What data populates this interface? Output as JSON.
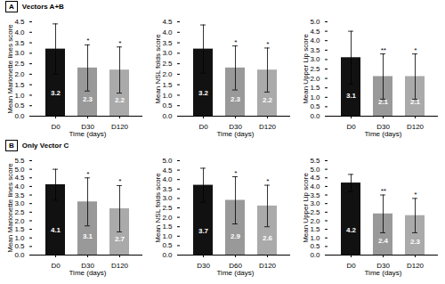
{
  "chart_data": [
    {
      "type": "bar",
      "title": "Vectors A+B",
      "subtitle": "A",
      "ylabel": "Mean Marionette lines score",
      "xlabel": "Time (days)",
      "categories": [
        "D0",
        "D30",
        "D120"
      ],
      "values": [
        3.2,
        2.3,
        2.2
      ],
      "errors": [
        1.2,
        1.1,
        1.1
      ],
      "colors": [
        "#111111",
        "#999999",
        "#aaaaaa"
      ],
      "annotations": [
        null,
        "*",
        "*"
      ],
      "data_labels": true,
      "ylim": [
        0.0,
        4.5
      ],
      "yticks": [
        {
          "value": 0,
          "label": "0.0"
        },
        0.5,
        {
          "value": 1,
          "label": "1.0"
        },
        1.5,
        {
          "value": 2,
          "label": "2.0"
        },
        2.5,
        {
          "value": 3,
          "label": "3.0"
        },
        3.5,
        {
          "value": 4,
          "label": "4.0"
        },
        4.5
      ]
    },
    {
      "type": "bar",
      "ylabel": "Mean NSL folds score",
      "xlabel": "Time (days)",
      "categories": [
        "D0",
        "D30",
        "D120"
      ],
      "values": [
        3.2,
        2.3,
        2.2
      ],
      "errors": [
        1.15,
        1.05,
        1.05
      ],
      "colors": [
        "#111111",
        "#999999",
        "#aaaaaa"
      ],
      "annotations": [
        null,
        "*",
        "*"
      ],
      "data_labels": true,
      "ylim": [
        0.0,
        4.5
      ],
      "yticks": [
        {
          "value": 0,
          "label": "0.0"
        },
        0.5,
        {
          "value": 1,
          "label": "1.0"
        },
        1.5,
        {
          "value": 2,
          "label": "2.0"
        },
        2.5,
        {
          "value": 3,
          "label": "3.0"
        },
        3.5,
        {
          "value": 4,
          "label": "4.0"
        },
        4.5
      ]
    },
    {
      "type": "bar",
      "ylabel": "Mean Upper Lip score",
      "xlabel": "Time (days)",
      "categories": [
        "D0",
        "D30",
        "D120"
      ],
      "values": [
        3.1,
        2.1,
        2.1
      ],
      "errors": [
        1.4,
        1.2,
        1.2
      ],
      "colors": [
        "#111111",
        "#999999",
        "#aaaaaa"
      ],
      "annotations": [
        null,
        "**",
        "*"
      ],
      "data_labels": true,
      "ylim": [
        0.0,
        5.0
      ],
      "yticks": [
        {
          "value": 0,
          "label": "0.0"
        },
        0.5,
        {
          "value": 1,
          "label": "1.0"
        },
        1.5,
        {
          "value": 2,
          "label": "2.0"
        },
        2.5,
        {
          "value": 3,
          "label": "3.0"
        },
        3.5,
        {
          "value": 4,
          "label": "4.0"
        },
        4.5,
        {
          "value": 5,
          "label": "5.0"
        }
      ]
    },
    {
      "type": "bar",
      "title": "Only Vector C",
      "subtitle": "B",
      "ylabel": "Mean Marionette lines score",
      "xlabel": "Time (days)",
      "categories": [
        "D0",
        "D30",
        "D120"
      ],
      "values": [
        4.1,
        3.1,
        2.7
      ],
      "errors": [
        0.9,
        1.4,
        1.35
      ],
      "colors": [
        "#111111",
        "#999999",
        "#aaaaaa"
      ],
      "annotations": [
        null,
        "*",
        "*"
      ],
      "data_labels": true,
      "ylim": [
        0.0,
        5.5
      ],
      "yticks": [
        {
          "value": 0,
          "label": "0.0"
        },
        0.5,
        {
          "value": 1,
          "label": "1.0"
        },
        1.5,
        {
          "value": 2,
          "label": "2.0"
        },
        2.5,
        {
          "value": 3,
          "label": "3.0"
        },
        3.5,
        {
          "value": 4,
          "label": "4.0"
        },
        4.5,
        {
          "value": 5,
          "label": "5.0"
        },
        5.5
      ]
    },
    {
      "type": "bar",
      "ylabel": "Mean NSL folds score",
      "xlabel": "Time (days)",
      "categories": [
        "D30",
        "D60",
        "D120"
      ],
      "values": [
        3.7,
        2.9,
        2.6
      ],
      "errors": [
        0.9,
        1.25,
        1.1
      ],
      "colors": [
        "#111111",
        "#999999",
        "#aaaaaa"
      ],
      "annotations": [
        null,
        "*",
        "*"
      ],
      "data_labels": true,
      "ylim": [
        0.0,
        5.0
      ],
      "yticks": [
        {
          "value": 0,
          "label": "0.0"
        },
        0.5,
        {
          "value": 1,
          "label": "1.0"
        },
        1.5,
        {
          "value": 2,
          "label": "2.0"
        },
        2.5,
        {
          "value": 3,
          "label": "3.0"
        },
        3.5,
        {
          "value": 4,
          "label": "4.0"
        },
        4.5,
        {
          "value": 5,
          "label": "5.0"
        }
      ]
    },
    {
      "type": "bar",
      "ylabel": "Mean Upper Lip score",
      "xlabel": "Time (days)",
      "categories": [
        "D0",
        "D30",
        "D120"
      ],
      "values": [
        4.2,
        2.4,
        2.3
      ],
      "errors": [
        0.5,
        1.1,
        1.0
      ],
      "colors": [
        "#111111",
        "#999999",
        "#aaaaaa"
      ],
      "annotations": [
        null,
        "**",
        "*"
      ],
      "data_labels": true,
      "ylim": [
        0.0,
        5.5
      ],
      "yticks": [
        {
          "value": 0,
          "label": "0.0"
        },
        0.5,
        {
          "value": 1,
          "label": "1.0"
        },
        1.5,
        {
          "value": 2,
          "label": "2.0"
        },
        2.5,
        {
          "value": 3,
          "label": "3.0"
        },
        3.5,
        {
          "value": 4,
          "label": "4.0"
        },
        4.5,
        {
          "value": 5,
          "label": "5.0"
        },
        5.5
      ]
    }
  ]
}
